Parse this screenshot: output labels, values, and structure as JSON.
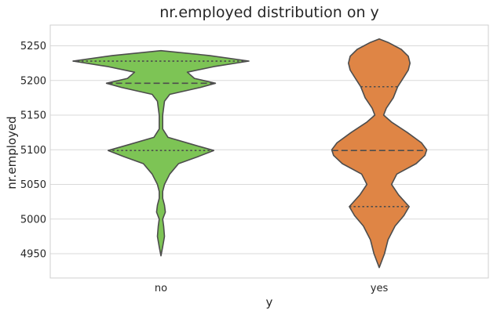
{
  "chart_data": {
    "type": "violin",
    "title": "nr.employed distribution on y",
    "xlabel": "y",
    "ylabel": "nr.employed",
    "categories": [
      "no",
      "yes"
    ],
    "ylim": [
      4915,
      5280
    ],
    "yticks": [
      4950,
      5000,
      5050,
      5100,
      5150,
      5200,
      5250
    ],
    "grid": true,
    "colors": {
      "no": "#7dc455",
      "yes": "#df8545"
    },
    "series": [
      {
        "category": "no",
        "range": [
          4947,
          5243
        ],
        "quartiles": [
          5099,
          5196,
          5228
        ],
        "density": [
          [
            4947,
            0.0
          ],
          [
            4960,
            0.02
          ],
          [
            4975,
            0.04
          ],
          [
            4990,
            0.03
          ],
          [
            5000,
            0.02
          ],
          [
            5010,
            0.05
          ],
          [
            5020,
            0.04
          ],
          [
            5030,
            0.02
          ],
          [
            5040,
            0.02
          ],
          [
            5050,
            0.04
          ],
          [
            5065,
            0.1
          ],
          [
            5080,
            0.2
          ],
          [
            5090,
            0.42
          ],
          [
            5099,
            0.6
          ],
          [
            5108,
            0.35
          ],
          [
            5118,
            0.08
          ],
          [
            5130,
            0.02
          ],
          [
            5150,
            0.02
          ],
          [
            5170,
            0.04
          ],
          [
            5180,
            0.1
          ],
          [
            5190,
            0.45
          ],
          [
            5196,
            0.62
          ],
          [
            5203,
            0.38
          ],
          [
            5212,
            0.3
          ],
          [
            5220,
            0.6
          ],
          [
            5228,
            1.0
          ],
          [
            5236,
            0.55
          ],
          [
            5243,
            0.0
          ]
        ]
      },
      {
        "category": "yes",
        "range": [
          4930,
          5260
        ],
        "quartiles": [
          5018,
          5099,
          5191
        ],
        "density": [
          [
            4930,
            0.0
          ],
          [
            4950,
            0.06
          ],
          [
            4970,
            0.1
          ],
          [
            4990,
            0.18
          ],
          [
            5005,
            0.28
          ],
          [
            5018,
            0.34
          ],
          [
            5035,
            0.22
          ],
          [
            5050,
            0.14
          ],
          [
            5065,
            0.2
          ],
          [
            5080,
            0.42
          ],
          [
            5092,
            0.52
          ],
          [
            5100,
            0.54
          ],
          [
            5110,
            0.48
          ],
          [
            5125,
            0.32
          ],
          [
            5140,
            0.14
          ],
          [
            5150,
            0.05
          ],
          [
            5160,
            0.08
          ],
          [
            5175,
            0.16
          ],
          [
            5191,
            0.21
          ],
          [
            5205,
            0.28
          ],
          [
            5215,
            0.33
          ],
          [
            5225,
            0.35
          ],
          [
            5235,
            0.33
          ],
          [
            5245,
            0.25
          ],
          [
            5255,
            0.1
          ],
          [
            5260,
            0.0
          ]
        ]
      }
    ]
  }
}
